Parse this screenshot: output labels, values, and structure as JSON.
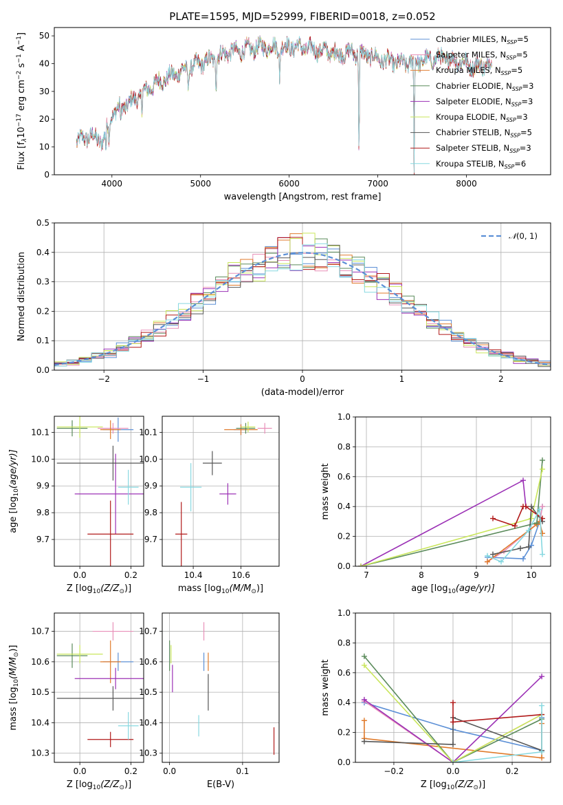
{
  "figure": {
    "title": "PLATE=1595, MJD=52999, FIBERID=0018, z=0.052"
  },
  "models": [
    {
      "name": "Chabrier MILES, N$_{SSP}$=5",
      "label_main": "Chabrier MILES, N",
      "label_sub": "SSP",
      "label_tail": "=5",
      "color": "#5b8fd6"
    },
    {
      "name": "Salpeter MILES, N$_{SSP}$=5",
      "label_main": "Salpeter MILES, N",
      "label_sub": "SSP",
      "label_tail": "=5",
      "color": "#e88fb8"
    },
    {
      "name": "Kroupa MILES, N$_{SSP}$=5",
      "label_main": "Kroupa MILES, N",
      "label_sub": "SSP",
      "label_tail": "=5",
      "color": "#e07a2a"
    },
    {
      "name": "Chabrier ELODIE, N$_{SSP}$=3",
      "label_main": "Chabrier ELODIE, N",
      "label_sub": "SSP",
      "label_tail": "=3",
      "color": "#5a8a5a"
    },
    {
      "name": "Salpeter ELODIE, N$_{SSP}$=3",
      "label_main": "Salpeter ELODIE, N",
      "label_sub": "SSP",
      "label_tail": "=3",
      "color": "#9b30b5"
    },
    {
      "name": "Kroupa ELODIE, N$_{SSP}$=3",
      "label_main": "Kroupa ELODIE, N",
      "label_sub": "SSP",
      "label_tail": "=3",
      "color": "#c9e65a"
    },
    {
      "name": "Chabrier STELIB, N$_{SSP}$=5",
      "label_main": "Chabrier STELIB, N",
      "label_sub": "SSP",
      "label_tail": "=5",
      "color": "#555555"
    },
    {
      "name": "Salpeter STELIB, N$_{SSP}$=3",
      "label_main": "Salpeter STELIB, N",
      "label_sub": "SSP",
      "label_tail": "=3",
      "color": "#b01818"
    },
    {
      "name": "Kroupa STELIB, N$_{SSP}$=6",
      "label_main": "Kroupa STELIB, N",
      "label_sub": "SSP",
      "label_tail": "=6",
      "color": "#86d8e0"
    }
  ],
  "chart_data": [
    {
      "type": "line",
      "id": "spectrum",
      "xlabel": "wavelength [Angstrom, rest frame]",
      "ylabel": "Flux [f_λ 10^-17 erg cm^-2 s^-1 A^-1]",
      "ylabel_parts": {
        "a": "Flux [f",
        "b": "λ",
        "c": "10",
        "d": "−17",
        "e": " erg cm",
        "f": "−2",
        "g": " s",
        "h": "−1",
        "i": " A",
        "j": "−1",
        "k": "]"
      },
      "xlim": [
        3350,
        8950
      ],
      "ylim": [
        0,
        53
      ],
      "xticks": [
        4000,
        5000,
        6000,
        7000,
        8000
      ],
      "yticks": [
        0,
        10,
        20,
        30,
        40,
        50
      ],
      "grid": false,
      "legend": "upper right",
      "continuum": {
        "x": [
          3600,
          3750,
          3900,
          4000,
          4150,
          4300,
          4500,
          4700,
          4900,
          5100,
          5300,
          5500,
          5700,
          5900,
          6100,
          6300,
          6500,
          6700,
          6900,
          7100,
          7300,
          7500,
          7700,
          7900,
          8100,
          8300
        ],
        "y": [
          12,
          14,
          12,
          22,
          25,
          28,
          33,
          36,
          39,
          41,
          44,
          45,
          46,
          46,
          46,
          45,
          44,
          44,
          43,
          41,
          40,
          41,
          42,
          41,
          39,
          40
        ]
      },
      "dips": [
        [
          3933,
          7
        ],
        [
          3968,
          9
        ],
        [
          4101,
          18
        ],
        [
          4340,
          20
        ],
        [
          4861,
          30
        ],
        [
          5175,
          27
        ],
        [
          5893,
          32
        ],
        [
          6563,
          40
        ],
        [
          6788,
          0
        ],
        [
          7410,
          0
        ]
      ]
    },
    {
      "type": "histogram",
      "id": "residuals",
      "xlabel": "(data-model)/error",
      "ylabel": "Normed distribution",
      "xlim": [
        -2.5,
        2.5
      ],
      "ylim": [
        0,
        0.5
      ],
      "xticks": [
        -2,
        -1,
        0,
        1,
        2
      ],
      "yticks": [
        0,
        0.1,
        0.2,
        0.3,
        0.4,
        0.5
      ],
      "grid": true,
      "bins": 40,
      "legend": "upper right",
      "reference": {
        "name": "𝒩(0,1)",
        "label_pre": "𝒩",
        "label_post": "(0, 1)",
        "color": "#5b8fd6",
        "mean": 0,
        "sigma": 1
      }
    },
    {
      "type": "scatter",
      "id": "age_vs_Z",
      "xlabel": "Z [log10(Z/Z⊙)]",
      "ylabel": "age [log10(age/yr)]",
      "xlim": [
        -0.1,
        0.25
      ],
      "ylim": [
        9.6,
        10.16
      ],
      "xticks": [
        0.0,
        0.2
      ],
      "yticks": [
        9.7,
        9.8,
        9.9,
        10.0,
        10.1
      ],
      "grid": true,
      "points": [
        {
          "m": 0,
          "x": 0.15,
          "y": 10.11,
          "xerr": 0.06,
          "yerr": 0.045
        },
        {
          "m": 1,
          "x": 0.13,
          "y": 10.115,
          "xerr": 0.06,
          "yerr": 0.02
        },
        {
          "m": 2,
          "x": 0.12,
          "y": 10.11,
          "xerr": 0.04,
          "yerr": 0.035
        },
        {
          "m": 3,
          "x": -0.03,
          "y": 10.115,
          "xerr": 0.06,
          "yerr": 0.03
        },
        {
          "m": 4,
          "x": 0.14,
          "y": 9.87,
          "xerr": 0.16,
          "yerr": 0.15
        },
        {
          "m": 5,
          "x": 0.0,
          "y": 10.12,
          "xerr": 0.09,
          "yerr": 0.04
        },
        {
          "m": 6,
          "x": 0.13,
          "y": 9.985,
          "xerr": 0.22,
          "yerr": 0.065
        },
        {
          "m": 7,
          "x": 0.12,
          "y": 9.72,
          "xerr": 0.09,
          "yerr": 0.125
        },
        {
          "m": 8,
          "x": 0.19,
          "y": 9.895,
          "xerr": 0.04,
          "yerr": 0.065
        }
      ]
    },
    {
      "type": "scatter",
      "id": "age_vs_mass",
      "xlabel": "mass [log10(M/M⊙)]",
      "ylabel": "",
      "xlim": [
        10.27,
        10.76
      ],
      "ylim": [
        9.6,
        10.16
      ],
      "xticks": [
        10.4,
        10.6
      ],
      "yticks": [
        9.7,
        9.8,
        9.9,
        10.0,
        10.1
      ],
      "grid": true,
      "points": [
        {
          "m": 0,
          "x": 10.6,
          "y": 10.11,
          "xerr": 0.03,
          "yerr": 0.02
        },
        {
          "m": 1,
          "x": 10.7,
          "y": 10.115,
          "xerr": 0.03,
          "yerr": 0.02
        },
        {
          "m": 2,
          "x": 10.6,
          "y": 10.11,
          "xerr": 0.07,
          "yerr": 0.02
        },
        {
          "m": 3,
          "x": 10.62,
          "y": 10.115,
          "xerr": 0.04,
          "yerr": 0.02
        },
        {
          "m": 4,
          "x": 10.545,
          "y": 9.87,
          "xerr": 0.035,
          "yerr": 0.04
        },
        {
          "m": 5,
          "x": 10.63,
          "y": 10.12,
          "xerr": 0.03,
          "yerr": 0.02
        },
        {
          "m": 6,
          "x": 10.48,
          "y": 9.985,
          "xerr": 0.04,
          "yerr": 0.045
        },
        {
          "m": 7,
          "x": 10.35,
          "y": 9.72,
          "xerr": 0.025,
          "yerr": 0.12
        },
        {
          "m": 8,
          "x": 10.39,
          "y": 9.895,
          "xerr": 0.045,
          "yerr": 0.09
        }
      ]
    },
    {
      "type": "line",
      "id": "weight_vs_age",
      "xlabel": "age [log10(age/yr)]",
      "ylabel": "mass weight",
      "xlim": [
        6.8,
        10.35
      ],
      "ylim": [
        0,
        1
      ],
      "xticks": [
        7,
        8,
        9,
        10
      ],
      "yticks": [
        0,
        0.2,
        0.4,
        0.6,
        0.8,
        1.0
      ],
      "grid": true,
      "series": [
        {
          "m": 0,
          "x": [
            9.2,
            9.85,
            10.0,
            10.15,
            10.2
          ],
          "y": [
            0.06,
            0.05,
            0.14,
            0.3,
            0.4
          ]
        },
        {
          "m": 1,
          "x": [
            9.2,
            9.5,
            10.15,
            10.2
          ],
          "y": [
            0.03,
            0.1,
            0.3,
            0.4
          ]
        },
        {
          "m": 2,
          "x": [
            9.2,
            10.1,
            10.15,
            10.2
          ],
          "y": [
            0.03,
            0.28,
            0.3,
            0.22
          ]
        },
        {
          "m": 3,
          "x": [
            6.9,
            10.1,
            10.2
          ],
          "y": [
            0.0,
            0.29,
            0.71
          ]
        },
        {
          "m": 4,
          "x": [
            6.9,
            9.85,
            9.9
          ],
          "y": [
            0.0,
            0.575,
            0.4
          ]
        },
        {
          "m": 5,
          "x": [
            6.9,
            10.0,
            10.2
          ],
          "y": [
            0.0,
            0.32,
            0.65
          ]
        },
        {
          "m": 6,
          "x": [
            9.3,
            9.8,
            9.95,
            10.0,
            10.2
          ],
          "y": [
            0.08,
            0.12,
            0.13,
            0.4,
            0.3
          ]
        },
        {
          "m": 7,
          "x": [
            9.3,
            9.7,
            9.85,
            9.9,
            10.2
          ],
          "y": [
            0.32,
            0.27,
            0.4,
            0.4,
            0.32
          ]
        },
        {
          "m": 8,
          "x": [
            9.2,
            9.45,
            9.95,
            10.15,
            10.2
          ],
          "y": [
            0.07,
            0.03,
            0.24,
            0.38,
            0.08
          ]
        }
      ]
    },
    {
      "type": "scatter",
      "id": "mass_vs_Z",
      "xlabel": "Z [log10(Z/Z⊙)]",
      "ylabel": "mass [log10(M/M⊙)]",
      "xlim": [
        -0.1,
        0.25
      ],
      "ylim": [
        10.27,
        10.76
      ],
      "xticks": [
        0.0,
        0.2
      ],
      "yticks": [
        10.3,
        10.4,
        10.5,
        10.6,
        10.7
      ],
      "grid": true,
      "points": [
        {
          "m": 0,
          "x": 0.15,
          "y": 10.6,
          "xerr": 0.06,
          "yerr": 0.03
        },
        {
          "m": 1,
          "x": 0.13,
          "y": 10.7,
          "xerr": 0.08,
          "yerr": 0.03
        },
        {
          "m": 2,
          "x": 0.12,
          "y": 10.6,
          "xerr": 0.04,
          "yerr": 0.07
        },
        {
          "m": 3,
          "x": -0.03,
          "y": 10.62,
          "xerr": 0.06,
          "yerr": 0.04
        },
        {
          "m": 4,
          "x": 0.14,
          "y": 10.545,
          "xerr": 0.16,
          "yerr": 0.035
        },
        {
          "m": 5,
          "x": 0.0,
          "y": 10.625,
          "xerr": 0.09,
          "yerr": 0.03
        },
        {
          "m": 6,
          "x": 0.13,
          "y": 10.48,
          "xerr": 0.22,
          "yerr": 0.04
        },
        {
          "m": 7,
          "x": 0.12,
          "y": 10.345,
          "xerr": 0.09,
          "yerr": 0.025
        },
        {
          "m": 8,
          "x": 0.19,
          "y": 10.39,
          "xerr": 0.04,
          "yerr": 0.045
        }
      ]
    },
    {
      "type": "scatter",
      "id": "mass_vs_ebv",
      "xlabel": "E(B-V)",
      "ylabel": "",
      "xlim": [
        -0.01,
        0.15
      ],
      "ylim": [
        10.27,
        10.76
      ],
      "xticks": [
        0.0,
        0.1
      ],
      "yticks": [
        10.3,
        10.4,
        10.5,
        10.6,
        10.7
      ],
      "grid": true,
      "points": [
        {
          "m": 0,
          "x": 0.047,
          "y": 10.6,
          "xerr": 0.0,
          "yerr": 0.03
        },
        {
          "m": 1,
          "x": 0.047,
          "y": 10.7,
          "xerr": 0.0,
          "yerr": 0.03
        },
        {
          "m": 2,
          "x": 0.053,
          "y": 10.6,
          "xerr": 0.0,
          "yerr": 0.03
        },
        {
          "m": 3,
          "x": 0.0,
          "y": 10.62,
          "xerr": 0.0,
          "yerr": 0.05
        },
        {
          "m": 4,
          "x": 0.004,
          "y": 10.545,
          "xerr": 0.0,
          "yerr": 0.045
        },
        {
          "m": 5,
          "x": 0.002,
          "y": 10.625,
          "xerr": 0.0,
          "yerr": 0.03
        },
        {
          "m": 6,
          "x": 0.053,
          "y": 10.5,
          "xerr": 0.0,
          "yerr": 0.06
        },
        {
          "m": 7,
          "x": 0.143,
          "y": 10.34,
          "xerr": 0.0,
          "yerr": 0.045
        },
        {
          "m": 8,
          "x": 0.04,
          "y": 10.39,
          "xerr": 0.0,
          "yerr": 0.035
        }
      ]
    },
    {
      "type": "line",
      "id": "weight_vs_Z",
      "xlabel": "Z [log10(Z/Z⊙)]",
      "ylabel": "mass weight",
      "xlim": [
        -0.33,
        0.33
      ],
      "ylim": [
        0,
        1
      ],
      "xticks": [
        -0.2,
        0.0,
        0.2
      ],
      "yticks": [
        0,
        0.2,
        0.4,
        0.6,
        0.8,
        1.0
      ],
      "grid": true,
      "series": [
        {
          "m": 0,
          "x": [
            -0.3,
            0.0,
            0.3,
            0.3
          ],
          "y": [
            0.4,
            0.22,
            0.08,
            0.3
          ]
        },
        {
          "m": 1,
          "x": [
            -0.3,
            0.0,
            0.3
          ],
          "y": [
            0.41,
            0.0,
            0.32
          ]
        },
        {
          "m": 2,
          "x": [
            -0.3,
            -0.3,
            0.3,
            0.3
          ],
          "y": [
            0.28,
            0.16,
            0.03,
            0.26
          ]
        },
        {
          "m": 3,
          "x": [
            -0.3,
            0.0,
            0.3
          ],
          "y": [
            0.71,
            0.0,
            0.29
          ]
        },
        {
          "m": 4,
          "x": [
            -0.3,
            0.0,
            0.3
          ],
          "y": [
            0.42,
            0.0,
            0.575
          ]
        },
        {
          "m": 5,
          "x": [
            -0.3,
            0.0,
            0.3
          ],
          "y": [
            0.65,
            0.0,
            0.32
          ]
        },
        {
          "m": 6,
          "x": [
            -0.3,
            0.0,
            0.0,
            0.3
          ],
          "y": [
            0.14,
            0.12,
            0.3,
            0.08
          ]
        },
        {
          "m": 7,
          "x": [
            0.0,
            0.0,
            0.3
          ],
          "y": [
            0.4,
            0.27,
            0.32
          ]
        },
        {
          "m": 8,
          "x": [
            0.0,
            0.3,
            0.3
          ],
          "y": [
            0.0,
            0.07,
            0.38
          ]
        }
      ]
    }
  ],
  "labels": {
    "age_ylabel_a": "age  [log",
    "age_ylabel_b": "10",
    "age_ylabel_c": "(age/yr)]",
    "Z_xlabel_a": "Z [log",
    "Z_xlabel_b": "10",
    "Z_xlabel_c": "(Z/Z",
    "Z_xlabel_d": "⊙",
    "Z_xlabel_e": ")]",
    "mass_xlabel_a": "mass [log",
    "mass_xlabel_b": "10",
    "mass_xlabel_c": "(M/M",
    "mass_xlabel_d": "⊙",
    "mass_xlabel_e": ")]",
    "age_xlabel_a": "age  [log",
    "age_xlabel_b": "10",
    "age_xlabel_c": "(age/yr)]"
  }
}
